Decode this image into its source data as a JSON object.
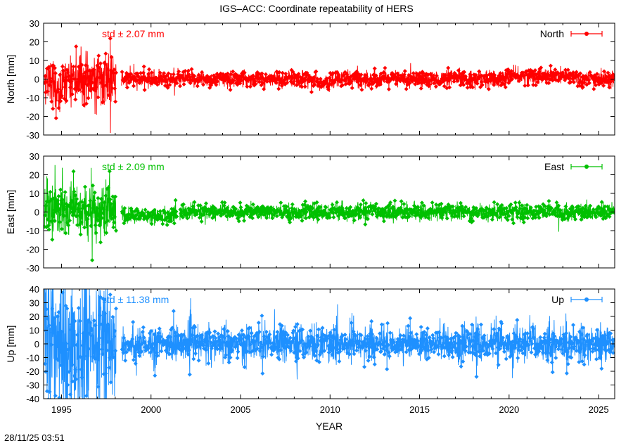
{
  "figure": {
    "title": "IGS–ACC: Coordinate repeatability of HERS",
    "xlabel": "YEAR",
    "timestamp": "28/11/25 03:51"
  },
  "chart_data": [
    {
      "type": "line",
      "series": [
        {
          "name": "North",
          "color": "#ff0000"
        }
      ],
      "ylabel": "North [mm]",
      "std_label": "std ± 2.07 mm",
      "xlim": [
        1994.0,
        2025.9
      ],
      "ylim": [
        -30,
        30
      ],
      "yticks": [
        -30,
        -20,
        -10,
        0,
        10,
        20,
        30
      ],
      "xticks": [
        1995,
        2000,
        2005,
        2010,
        2015,
        2020,
        2025
      ],
      "legend_position": "top-right",
      "grid": false
    },
    {
      "type": "line",
      "series": [
        {
          "name": "East",
          "color": "#00c000"
        }
      ],
      "ylabel": "East [mm]",
      "std_label": "std ± 2.09 mm",
      "xlim": [
        1994.0,
        2025.9
      ],
      "ylim": [
        -30,
        30
      ],
      "yticks": [
        -30,
        -20,
        -10,
        0,
        10,
        20,
        30
      ],
      "xticks": [
        1995,
        2000,
        2005,
        2010,
        2015,
        2020,
        2025
      ],
      "legend_position": "top-right",
      "grid": false
    },
    {
      "type": "line",
      "series": [
        {
          "name": "Up",
          "color": "#1e90ff"
        }
      ],
      "ylabel": "Up [mm]",
      "std_label": "std ± 11.38 mm",
      "xlim": [
        1994.0,
        2025.9
      ],
      "ylim": [
        -40,
        40
      ],
      "yticks": [
        -40,
        -30,
        -20,
        -10,
        0,
        10,
        20,
        30,
        40
      ],
      "xticks": [
        1995,
        2000,
        2005,
        2010,
        2015,
        2020,
        2025
      ],
      "legend_position": "top-right",
      "grid": false
    }
  ]
}
